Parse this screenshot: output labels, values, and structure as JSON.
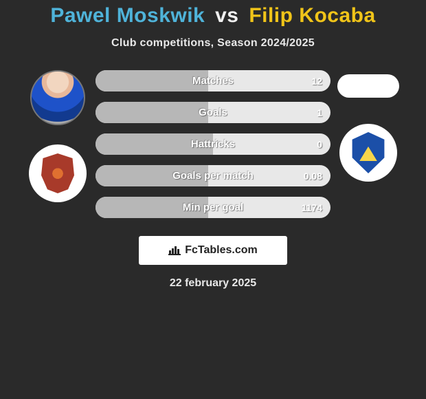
{
  "title": {
    "player1": "Pawel Moskwik",
    "vs": "vs",
    "player2": "Filip Kocaba",
    "color_player1": "#4fb3d9",
    "color_vs": "#f0f0f0",
    "color_player2": "#f0c419",
    "fontsize": 30
  },
  "subtitle": "Club competitions, Season 2024/2025",
  "stats": {
    "bar_bg": "#e8e8e8",
    "fill_color": "#b7b7b7",
    "label_color": "#ffffff",
    "label_fontsize": 15,
    "value_fontsize": 14,
    "rows": [
      {
        "label": "Matches",
        "left": "",
        "right": "12",
        "fill_left_pct": 48
      },
      {
        "label": "Goals",
        "left": "",
        "right": "1",
        "fill_left_pct": 48
      },
      {
        "label": "Hattricks",
        "left": "",
        "right": "0",
        "fill_left_pct": 50
      },
      {
        "label": "Goals per match",
        "left": "",
        "right": "0.08",
        "fill_left_pct": 48
      },
      {
        "label": "Min per goal",
        "left": "",
        "right": "1174",
        "fill_left_pct": 48
      }
    ]
  },
  "footer": {
    "logo_text": "FcTables.com",
    "date": "22 february 2025"
  },
  "colors": {
    "page_bg": "#2a2a2a",
    "text_light": "#e8e8e8",
    "white": "#ffffff"
  }
}
